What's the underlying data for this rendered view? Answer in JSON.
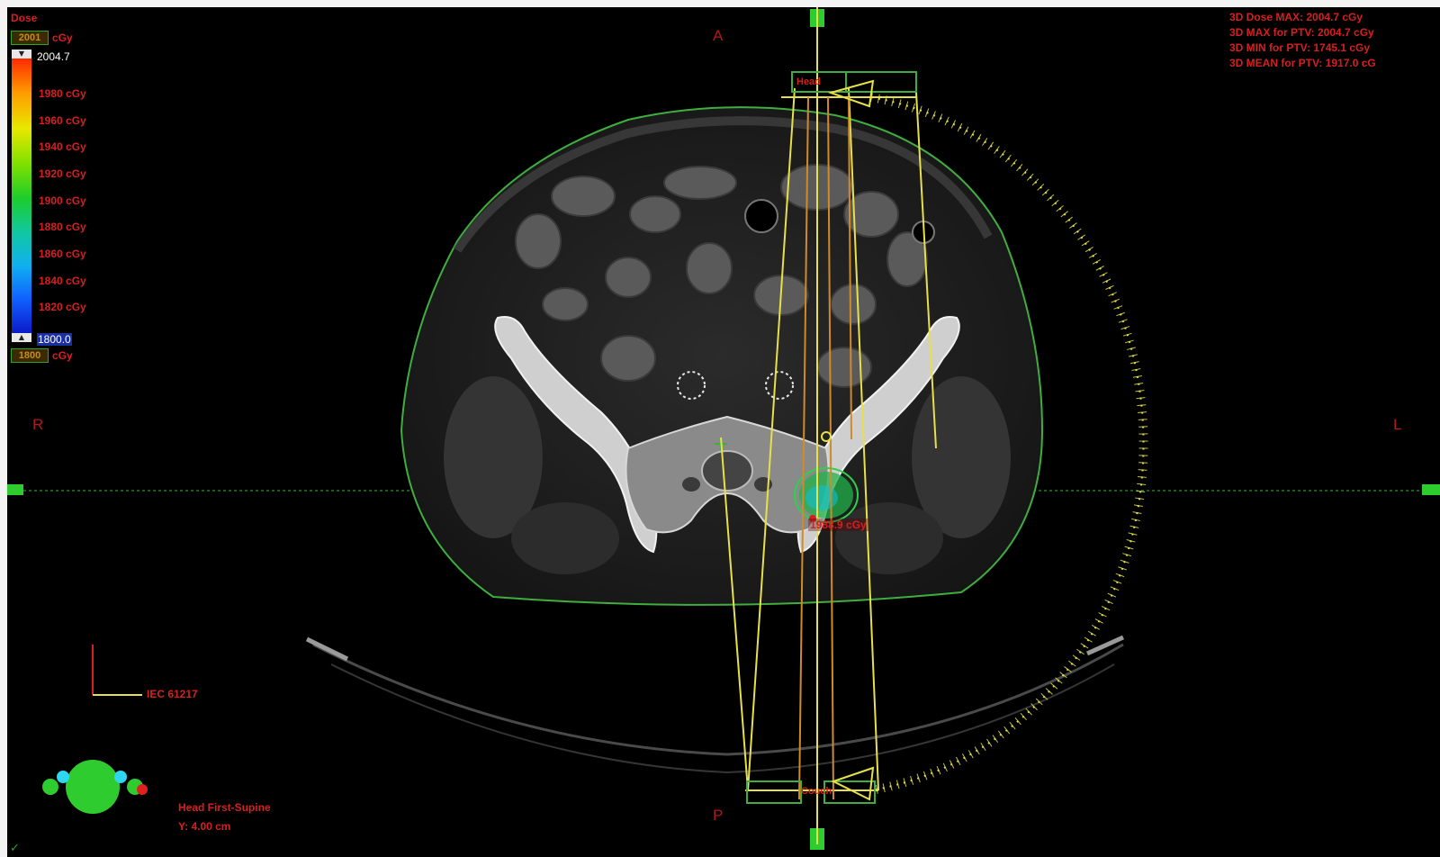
{
  "dose_panel": {
    "title": "Dose",
    "upper_input_value": "2001",
    "upper_unit": "cGy",
    "max_value": "2004.7",
    "levels": [
      "1980 cGy",
      "1960 cGy",
      "1940 cGy",
      "1920 cGy",
      "1900 cGy",
      "1880 cGy",
      "1860 cGy",
      "1840 cGy",
      "1820 cGy"
    ],
    "min_value": "1800.0",
    "lower_input_value": "1800",
    "lower_unit": "cGy",
    "gradient_colors": [
      "#ff2a00",
      "#ff9a00",
      "#e8e800",
      "#7de000",
      "#1ccc2c",
      "#10c8a0",
      "#10b0f0",
      "#1060ff",
      "#0a10c0"
    ]
  },
  "dose_stats": [
    "3D Dose MAX: 2004.7 cGy",
    "3D MAX for PTV: 2004.7 cGy",
    "3D MIN for PTV: 1745.1 cGy",
    "3D MEAN for PTV: 1917.0 cG"
  ],
  "orientation": {
    "anterior": "A",
    "posterior": "P",
    "right": "R",
    "left": "L"
  },
  "beam_labels": {
    "top": "Head",
    "bottom": "Couch"
  },
  "point_dose_label": "1988.9 cGy",
  "coordinate_system": "IEC 61217",
  "patient_info": {
    "position": "Head First-Supine",
    "slice": "Y: 4.00 cm"
  },
  "colors": {
    "viewport_bg": "#000000",
    "annotation_red": "#d61f1f",
    "body_contour": "#3fae3f",
    "beam_yellow": "#e6e04a",
    "beam_orange": "#d08a2a"
  }
}
